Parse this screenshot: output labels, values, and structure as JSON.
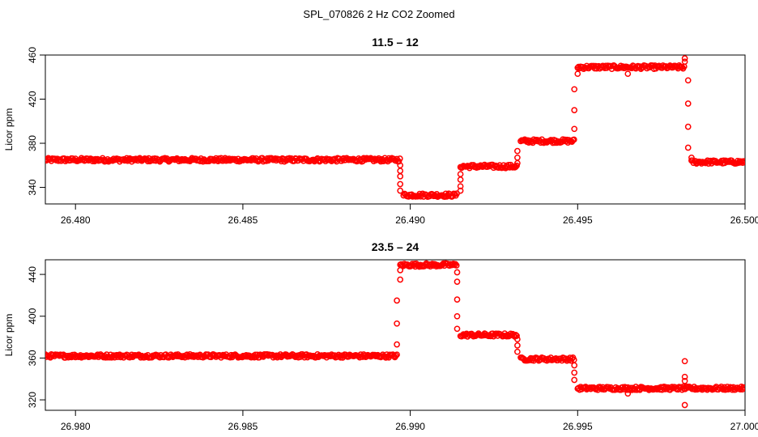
{
  "figure": {
    "title": "SPL_070826  2 Hz CO2 Zoomed",
    "point_color": "#ff0000"
  },
  "chart_data": [
    {
      "type": "scatter",
      "title": "11.5 – 12",
      "xlabel": "",
      "ylabel": "Licor ppm",
      "xlim": [
        26.4791,
        26.5
      ],
      "ylim": [
        325,
        460
      ],
      "xticks": [
        "26.480",
        "26.485",
        "26.490",
        "26.495",
        "26.500"
      ],
      "yticks": [
        "340",
        "380",
        "420",
        "460"
      ],
      "x_start": 26.4791,
      "x_end": 26.5,
      "levels": [
        {
          "x_start": 26.4791,
          "x_end": 26.4897,
          "value": 365
        },
        {
          "x_start": 26.4898,
          "x_end": 26.4914,
          "value": 333
        },
        {
          "x_start": 26.4915,
          "x_end": 26.4932,
          "value": 359
        },
        {
          "x_start": 26.4933,
          "x_end": 26.4949,
          "value": 382
        },
        {
          "x_start": 26.495,
          "x_end": 26.4982,
          "value": 449
        },
        {
          "x_start": 26.4984,
          "x_end": 26.5,
          "value": 363
        }
      ],
      "transition_points": [
        {
          "x": 26.4897,
          "y": 360
        },
        {
          "x": 26.4897,
          "y": 355
        },
        {
          "x": 26.4897,
          "y": 350
        },
        {
          "x": 26.4897,
          "y": 343
        },
        {
          "x": 26.4897,
          "y": 337
        },
        {
          "x": 26.4915,
          "y": 337
        },
        {
          "x": 26.4915,
          "y": 341
        },
        {
          "x": 26.4915,
          "y": 347
        },
        {
          "x": 26.4915,
          "y": 352
        },
        {
          "x": 26.4932,
          "y": 362
        },
        {
          "x": 26.4932,
          "y": 367
        },
        {
          "x": 26.4932,
          "y": 373
        },
        {
          "x": 26.4949,
          "y": 393
        },
        {
          "x": 26.4949,
          "y": 410
        },
        {
          "x": 26.4949,
          "y": 429
        },
        {
          "x": 26.495,
          "y": 443
        },
        {
          "x": 26.4965,
          "y": 443
        },
        {
          "x": 26.4982,
          "y": 457
        },
        {
          "x": 26.4982,
          "y": 454
        },
        {
          "x": 26.4983,
          "y": 437
        },
        {
          "x": 26.4983,
          "y": 416
        },
        {
          "x": 26.4983,
          "y": 395
        },
        {
          "x": 26.4983,
          "y": 376
        },
        {
          "x": 26.4984,
          "y": 367
        }
      ]
    },
    {
      "type": "scatter",
      "title": "23.5 – 24",
      "xlabel": "",
      "ylabel": "Licor ppm",
      "xlim": [
        26.9791,
        27.0
      ],
      "ylim": [
        310,
        454
      ],
      "xticks": [
        "26.980",
        "26.985",
        "26.990",
        "26.995",
        "27.000"
      ],
      "yticks": [
        "320",
        "360",
        "400",
        "440"
      ],
      "x_start": 26.9791,
      "x_end": 27.0,
      "levels": [
        {
          "x_start": 26.9791,
          "x_end": 26.9896,
          "value": 362
        },
        {
          "x_start": 26.9897,
          "x_end": 26.9914,
          "value": 449
        },
        {
          "x_start": 26.9915,
          "x_end": 26.9932,
          "value": 382
        },
        {
          "x_start": 26.9933,
          "x_end": 26.9949,
          "value": 359
        },
        {
          "x_start": 26.995,
          "x_end": 27.0,
          "value": 331
        }
      ],
      "transition_points": [
        {
          "x": 26.9896,
          "y": 373
        },
        {
          "x": 26.9896,
          "y": 393
        },
        {
          "x": 26.9896,
          "y": 415
        },
        {
          "x": 26.9897,
          "y": 435
        },
        {
          "x": 26.9897,
          "y": 444
        },
        {
          "x": 26.9914,
          "y": 442
        },
        {
          "x": 26.9914,
          "y": 433
        },
        {
          "x": 26.9914,
          "y": 416
        },
        {
          "x": 26.9914,
          "y": 400
        },
        {
          "x": 26.9914,
          "y": 388
        },
        {
          "x": 26.9932,
          "y": 378
        },
        {
          "x": 26.9932,
          "y": 372
        },
        {
          "x": 26.9932,
          "y": 366
        },
        {
          "x": 26.9949,
          "y": 353
        },
        {
          "x": 26.9949,
          "y": 346
        },
        {
          "x": 26.9949,
          "y": 339
        },
        {
          "x": 26.9965,
          "y": 326
        },
        {
          "x": 26.9982,
          "y": 357
        },
        {
          "x": 26.9982,
          "y": 342
        },
        {
          "x": 26.9982,
          "y": 338
        },
        {
          "x": 26.9982,
          "y": 315
        }
      ]
    }
  ]
}
